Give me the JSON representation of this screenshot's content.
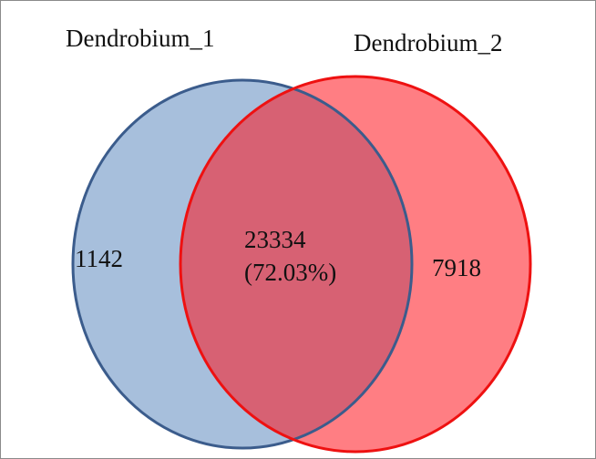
{
  "chart_data": {
    "type": "venn",
    "sets": [
      {
        "name": "Dendrobium_1",
        "color": "#a7bfdc",
        "stroke": "#3b5c8c",
        "only": 1142
      },
      {
        "name": "Dendrobium_2",
        "color": "#ff141e",
        "stroke": "#ee1111",
        "only": 7918
      }
    ],
    "intersection": 23334,
    "intersection_percent": {
      "value": 72.03,
      "label": "(72.03%)"
    }
  }
}
